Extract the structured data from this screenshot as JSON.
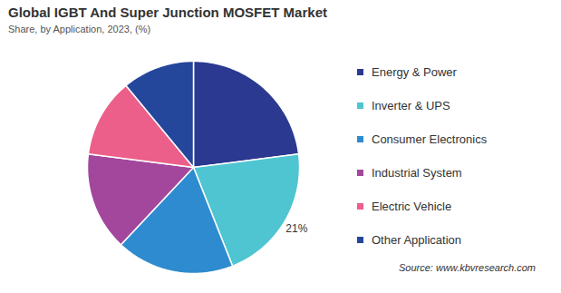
{
  "chart_data": {
    "type": "pie",
    "title": "Global IGBT And Super Junction MOSFET Market",
    "subtitle": "Share, by Application, 2023, (%)",
    "categories": [
      "Energy & Power",
      "Inverter & UPS",
      "Consumer Electronics",
      "Industrial System",
      "Electric Vehicle",
      "Other Application"
    ],
    "values": [
      23,
      21,
      18,
      15,
      12,
      11
    ],
    "value_labels": [
      null,
      "21%",
      null,
      null,
      null,
      null
    ],
    "colors": [
      "#2b3990",
      "#4ec5d1",
      "#2e8bcf",
      "#a3479d",
      "#ec5f8a",
      "#24469b"
    ],
    "legend": "right",
    "source": "Source: www.kbvresearch.com"
  }
}
